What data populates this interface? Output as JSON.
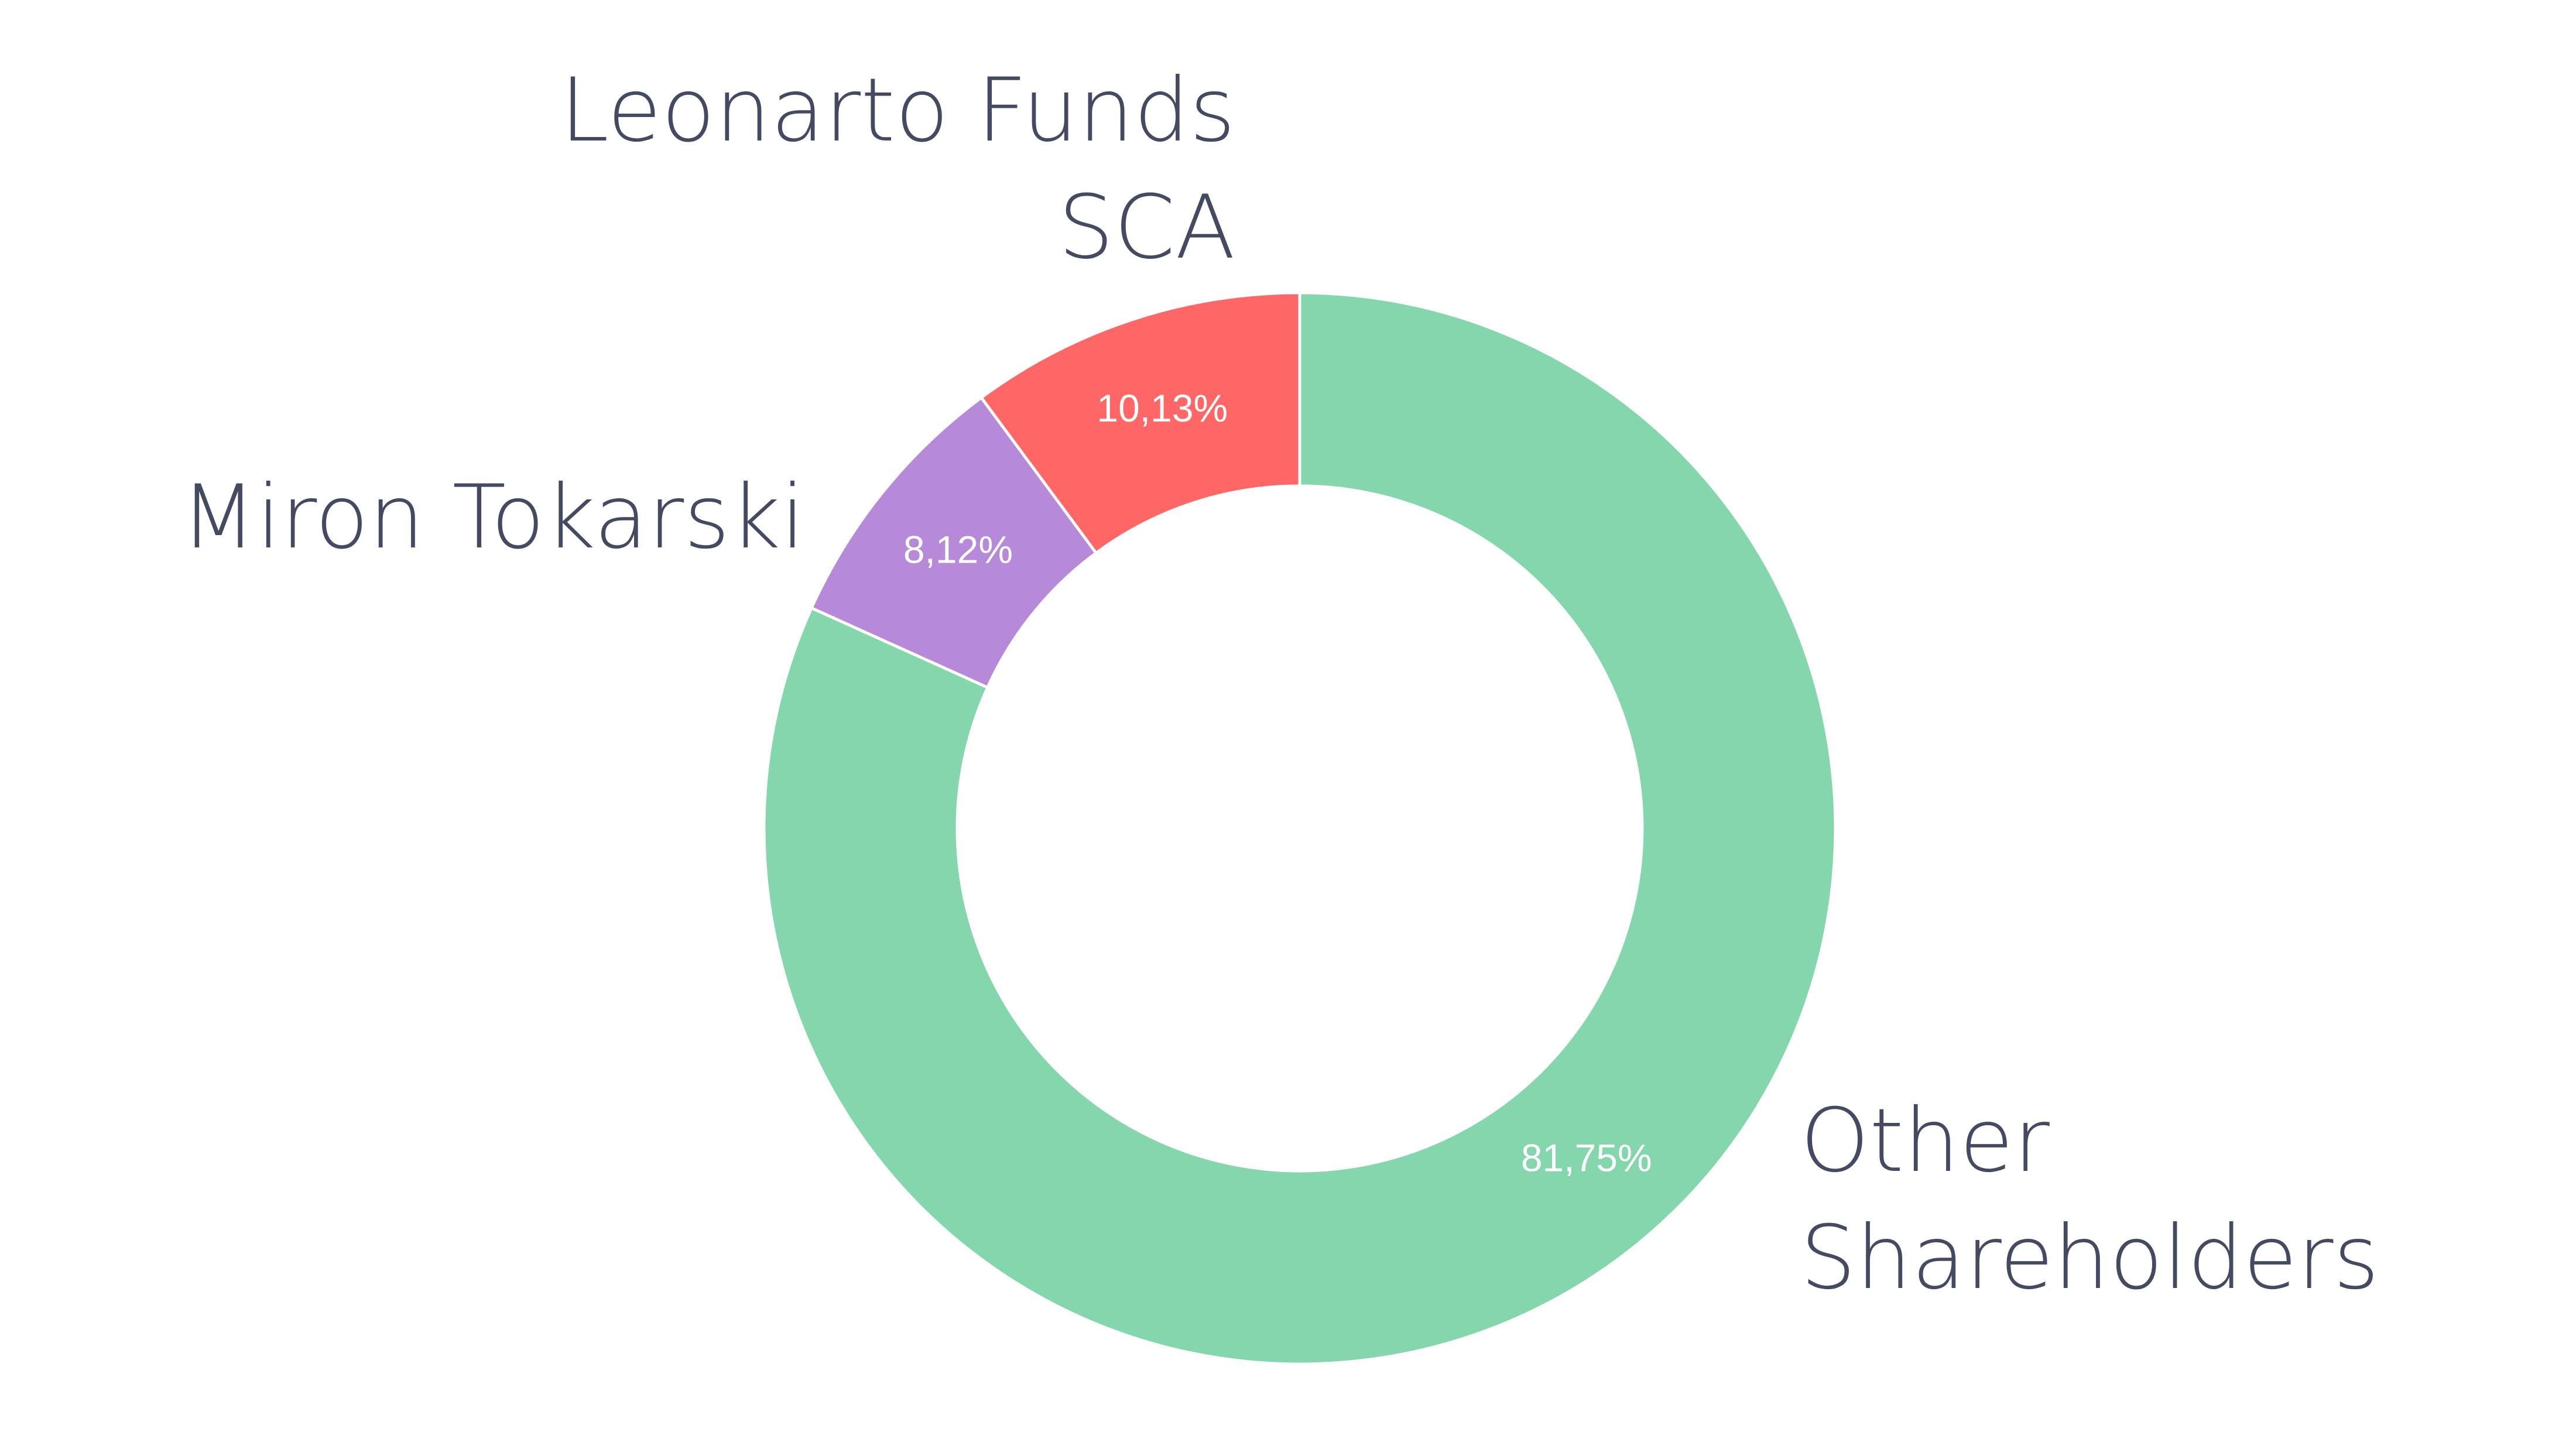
{
  "chart_data": {
    "type": "pie",
    "variant": "donut",
    "slices": [
      {
        "name": "Other Shareholders",
        "value": 81.75,
        "label": "81,75%",
        "color": "#84d6ac"
      },
      {
        "name": "Miron Tokarski",
        "value": 8.12,
        "label": "8,12%",
        "color": "#b68ad9"
      },
      {
        "name": "Leonarto Funds SCA",
        "value": 10.13,
        "label": "10,13%",
        "color": "#ff6666"
      }
    ],
    "category_labels": [
      {
        "lines": [
          "Other",
          "Shareholders"
        ]
      },
      {
        "lines": [
          "Miron Tokarski"
        ]
      },
      {
        "lines": [
          "Leonarto Funds",
          "SCA"
        ]
      }
    ],
    "start": "top",
    "direction": "clockwise",
    "label_color": "#454a63",
    "value_label_color": "#ffffff"
  }
}
